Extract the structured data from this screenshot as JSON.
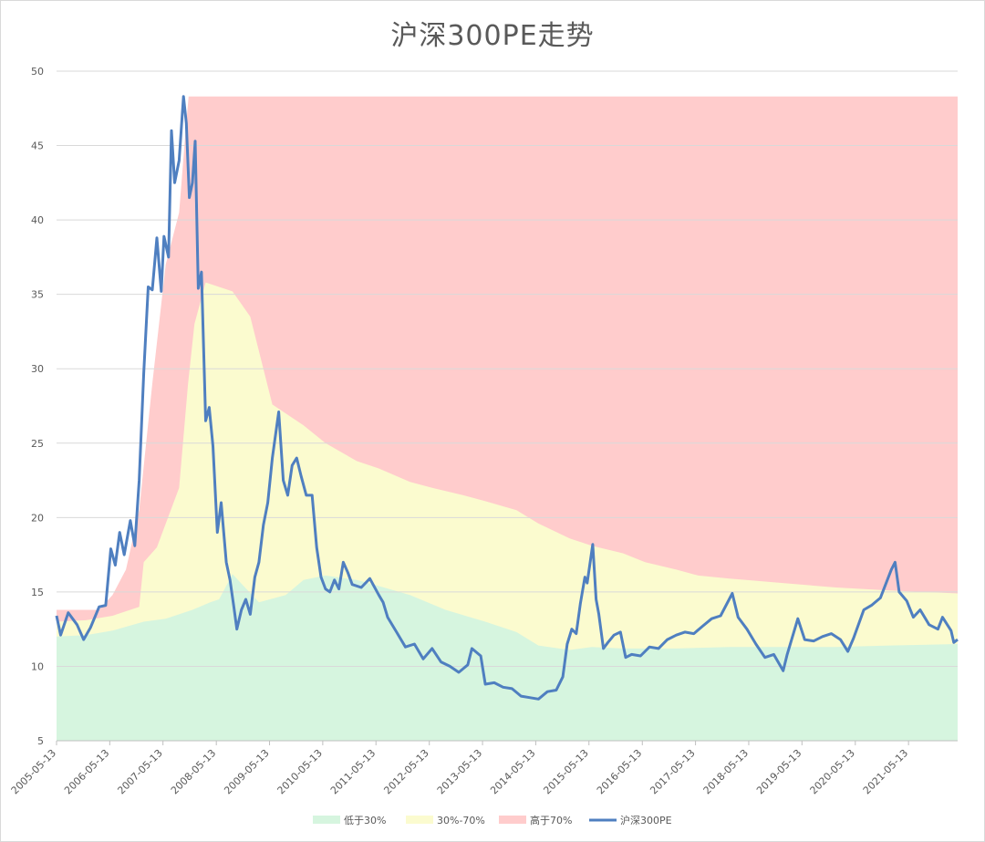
{
  "chart_data": {
    "type": "area",
    "title": "沪深300PE走势",
    "xlabel": "",
    "ylabel": "",
    "ylim": [
      5,
      50
    ],
    "yticks": [
      5,
      10,
      15,
      20,
      25,
      30,
      35,
      40,
      45,
      50
    ],
    "grid": true,
    "legend_position": "bottom",
    "x_tick_labels": [
      "2005-05-13",
      "2006-05-13",
      "2007-05-13",
      "2008-05-13",
      "2009-05-13",
      "2010-05-13",
      "2011-05-13",
      "2012-05-13",
      "2013-05-13",
      "2014-05-13",
      "2015-05-13",
      "2016-05-13",
      "2017-05-13",
      "2018-05-13",
      "2019-05-13",
      "2020-05-13",
      "2021-05-13"
    ],
    "x_start": "2005-05-13",
    "x_end": "2022-04-15",
    "colors": {
      "low": "#d6f5df",
      "mid": "#fbfbcf",
      "high": "#ffcccc",
      "line": "#4f7fc0",
      "grid": "#d9d9d9",
      "axis": "#bfbfbf"
    },
    "series": [
      {
        "name": "低于30%",
        "kind": "area",
        "points": [
          [
            "2005-05-13",
            12.0
          ],
          [
            "2005-12-01",
            12.1
          ],
          [
            "2006-06-01",
            12.4
          ],
          [
            "2007-01-01",
            13.0
          ],
          [
            "2007-06-01",
            13.2
          ],
          [
            "2007-12-01",
            13.8
          ],
          [
            "2008-04-01",
            14.3
          ],
          [
            "2008-06-01",
            14.5
          ],
          [
            "2008-09-01",
            16.2
          ],
          [
            "2009-03-01",
            14.3
          ],
          [
            "2009-09-01",
            14.8
          ],
          [
            "2010-01-01",
            15.8
          ],
          [
            "2010-06-01",
            16.1
          ],
          [
            "2011-01-01",
            15.8
          ],
          [
            "2011-06-01",
            15.4
          ],
          [
            "2012-01-01",
            14.8
          ],
          [
            "2012-09-01",
            13.8
          ],
          [
            "2013-06-01",
            13.0
          ],
          [
            "2014-01-01",
            12.3
          ],
          [
            "2014-06-01",
            11.4
          ],
          [
            "2015-01-01",
            11.1
          ],
          [
            "2015-06-01",
            11.3
          ],
          [
            "2016-01-01",
            11.2
          ],
          [
            "2017-01-01",
            11.2
          ],
          [
            "2018-01-01",
            11.3
          ],
          [
            "2019-01-01",
            11.3
          ],
          [
            "2020-01-01",
            11.3
          ],
          [
            "2021-01-01",
            11.4
          ],
          [
            "2022-04-15",
            11.5
          ]
        ]
      },
      {
        "name": "30%-70%",
        "kind": "area",
        "points": [
          [
            "2005-05-13",
            13.0
          ],
          [
            "2005-12-01",
            13.1
          ],
          [
            "2006-06-01",
            13.4
          ],
          [
            "2006-12-01",
            14.0
          ],
          [
            "2007-01-01",
            17.0
          ],
          [
            "2007-04-01",
            18.0
          ],
          [
            "2007-09-01",
            22.0
          ],
          [
            "2007-11-01",
            29.0
          ],
          [
            "2007-12-15",
            33.0
          ],
          [
            "2008-03-01",
            35.8
          ],
          [
            "2008-06-01",
            35.5
          ],
          [
            "2008-09-01",
            35.2
          ],
          [
            "2009-01-01",
            33.5
          ],
          [
            "2009-06-01",
            27.6
          ],
          [
            "2010-01-01",
            26.2
          ],
          [
            "2010-06-01",
            25.0
          ],
          [
            "2011-01-01",
            23.8
          ],
          [
            "2011-06-01",
            23.3
          ],
          [
            "2012-01-01",
            22.4
          ],
          [
            "2012-06-01",
            22.0
          ],
          [
            "2013-01-01",
            21.5
          ],
          [
            "2013-06-01",
            21.1
          ],
          [
            "2014-01-01",
            20.5
          ],
          [
            "2014-06-01",
            19.6
          ],
          [
            "2015-01-01",
            18.6
          ],
          [
            "2015-06-01",
            18.1
          ],
          [
            "2016-01-01",
            17.6
          ],
          [
            "2016-06-01",
            17.0
          ],
          [
            "2017-01-01",
            16.5
          ],
          [
            "2017-06-01",
            16.1
          ],
          [
            "2018-01-01",
            15.9
          ],
          [
            "2019-01-01",
            15.6
          ],
          [
            "2020-01-01",
            15.3
          ],
          [
            "2021-01-01",
            15.1
          ],
          [
            "2022-04-15",
            14.9
          ]
        ]
      },
      {
        "name": "高于70%",
        "kind": "area",
        "points": [
          [
            "2005-05-13",
            13.8
          ],
          [
            "2006-03-01",
            13.8
          ],
          [
            "2006-06-01",
            14.8
          ],
          [
            "2006-09-01",
            16.5
          ],
          [
            "2006-12-01",
            20.5
          ],
          [
            "2007-03-01",
            29.0
          ],
          [
            "2007-06-01",
            37.0
          ],
          [
            "2007-09-01",
            40.5
          ],
          [
            "2007-10-15",
            46.0
          ],
          [
            "2007-11-05",
            48.3
          ],
          [
            "2022-04-15",
            48.3
          ]
        ]
      },
      {
        "name": "沪深300PE",
        "kind": "line",
        "points": [
          [
            "2005-05-13",
            13.4
          ],
          [
            "2005-06-10",
            12.1
          ],
          [
            "2005-08-01",
            13.6
          ],
          [
            "2005-10-01",
            12.8
          ],
          [
            "2005-11-15",
            11.8
          ],
          [
            "2006-01-01",
            12.6
          ],
          [
            "2006-03-01",
            14.0
          ],
          [
            "2006-04-15",
            14.1
          ],
          [
            "2006-05-20",
            17.9
          ],
          [
            "2006-06-20",
            16.8
          ],
          [
            "2006-07-20",
            19.0
          ],
          [
            "2006-08-20",
            17.5
          ],
          [
            "2006-10-01",
            19.8
          ],
          [
            "2006-11-01",
            18.1
          ],
          [
            "2006-12-01",
            22.5
          ],
          [
            "2007-01-01",
            29.7
          ],
          [
            "2007-02-01",
            35.5
          ],
          [
            "2007-03-01",
            35.3
          ],
          [
            "2007-04-01",
            38.8
          ],
          [
            "2007-05-01",
            35.2
          ],
          [
            "2007-05-20",
            38.9
          ],
          [
            "2007-06-20",
            37.5
          ],
          [
            "2007-07-10",
            46.0
          ],
          [
            "2007-08-01",
            42.5
          ],
          [
            "2007-09-01",
            44.0
          ],
          [
            "2007-10-01",
            48.3
          ],
          [
            "2007-10-20",
            46.5
          ],
          [
            "2007-11-10",
            41.5
          ],
          [
            "2007-12-01",
            42.5
          ],
          [
            "2007-12-20",
            45.3
          ],
          [
            "2008-01-10",
            35.4
          ],
          [
            "2008-02-01",
            36.5
          ],
          [
            "2008-03-01",
            26.5
          ],
          [
            "2008-03-25",
            27.4
          ],
          [
            "2008-04-20",
            24.8
          ],
          [
            "2008-05-20",
            19.0
          ],
          [
            "2008-06-15",
            21.0
          ],
          [
            "2008-07-20",
            17.0
          ],
          [
            "2008-08-15",
            15.8
          ],
          [
            "2008-09-10",
            14.0
          ],
          [
            "2008-10-01",
            12.5
          ],
          [
            "2008-11-01",
            13.8
          ],
          [
            "2008-12-01",
            14.5
          ],
          [
            "2009-01-01",
            13.5
          ],
          [
            "2009-02-01",
            16.0
          ],
          [
            "2009-03-01",
            17.0
          ],
          [
            "2009-04-01",
            19.5
          ],
          [
            "2009-05-01",
            21.0
          ],
          [
            "2009-06-01",
            24.0
          ],
          [
            "2009-07-15",
            27.1
          ],
          [
            "2009-08-15",
            22.5
          ],
          [
            "2009-09-15",
            21.5
          ],
          [
            "2009-10-15",
            23.5
          ],
          [
            "2009-11-15",
            24.0
          ],
          [
            "2009-12-15",
            22.8
          ],
          [
            "2010-01-20",
            21.5
          ],
          [
            "2010-03-01",
            21.5
          ],
          [
            "2010-04-01",
            18.0
          ],
          [
            "2010-05-01",
            16.0
          ],
          [
            "2010-06-01",
            15.2
          ],
          [
            "2010-07-01",
            15.0
          ],
          [
            "2010-08-01",
            15.8
          ],
          [
            "2010-09-01",
            15.2
          ],
          [
            "2010-10-01",
            17.0
          ],
          [
            "2010-11-01",
            16.3
          ],
          [
            "2010-12-01",
            15.5
          ],
          [
            "2011-02-01",
            15.3
          ],
          [
            "2011-04-01",
            15.9
          ],
          [
            "2011-06-01",
            14.8
          ],
          [
            "2011-07-01",
            14.3
          ],
          [
            "2011-08-01",
            13.3
          ],
          [
            "2011-10-01",
            12.3
          ],
          [
            "2011-12-01",
            11.3
          ],
          [
            "2012-02-01",
            11.5
          ],
          [
            "2012-04-01",
            10.5
          ],
          [
            "2012-06-01",
            11.2
          ],
          [
            "2012-08-01",
            10.3
          ],
          [
            "2012-10-01",
            10.0
          ],
          [
            "2012-12-01",
            9.6
          ],
          [
            "2013-02-01",
            10.1
          ],
          [
            "2013-03-01",
            11.2
          ],
          [
            "2013-05-01",
            10.7
          ],
          [
            "2013-06-01",
            8.8
          ],
          [
            "2013-08-01",
            8.9
          ],
          [
            "2013-10-01",
            8.6
          ],
          [
            "2013-12-01",
            8.5
          ],
          [
            "2014-02-01",
            8.0
          ],
          [
            "2014-04-01",
            7.9
          ],
          [
            "2014-06-01",
            7.8
          ],
          [
            "2014-08-01",
            8.3
          ],
          [
            "2014-10-01",
            8.4
          ],
          [
            "2014-11-15",
            9.3
          ],
          [
            "2014-12-15",
            11.5
          ],
          [
            "2015-01-15",
            12.5
          ],
          [
            "2015-02-15",
            12.2
          ],
          [
            "2015-03-15",
            14.2
          ],
          [
            "2015-04-15",
            16.0
          ],
          [
            "2015-05-01",
            15.6
          ],
          [
            "2015-06-08",
            18.2
          ],
          [
            "2015-07-01",
            14.5
          ],
          [
            "2015-07-20",
            13.5
          ],
          [
            "2015-08-20",
            11.2
          ],
          [
            "2015-09-20",
            11.6
          ],
          [
            "2015-11-01",
            12.1
          ],
          [
            "2015-12-15",
            12.3
          ],
          [
            "2016-01-20",
            10.6
          ],
          [
            "2016-03-01",
            10.8
          ],
          [
            "2016-05-01",
            10.7
          ],
          [
            "2016-07-01",
            11.3
          ],
          [
            "2016-09-01",
            11.2
          ],
          [
            "2016-11-01",
            11.8
          ],
          [
            "2017-01-01",
            12.1
          ],
          [
            "2017-03-01",
            12.3
          ],
          [
            "2017-05-01",
            12.2
          ],
          [
            "2017-07-01",
            12.7
          ],
          [
            "2017-09-01",
            13.2
          ],
          [
            "2017-11-01",
            13.4
          ],
          [
            "2018-01-20",
            14.9
          ],
          [
            "2018-03-01",
            13.3
          ],
          [
            "2018-05-01",
            12.5
          ],
          [
            "2018-07-01",
            11.5
          ],
          [
            "2018-09-01",
            10.6
          ],
          [
            "2018-11-01",
            10.8
          ],
          [
            "2019-01-04",
            9.7
          ],
          [
            "2019-02-01",
            10.8
          ],
          [
            "2019-04-15",
            13.2
          ],
          [
            "2019-06-01",
            11.8
          ],
          [
            "2019-08-01",
            11.7
          ],
          [
            "2019-10-01",
            12.0
          ],
          [
            "2019-12-01",
            12.2
          ],
          [
            "2020-02-01",
            11.8
          ],
          [
            "2020-03-23",
            11.0
          ],
          [
            "2020-05-01",
            11.9
          ],
          [
            "2020-07-10",
            13.8
          ],
          [
            "2020-09-01",
            14.1
          ],
          [
            "2020-11-01",
            14.6
          ],
          [
            "2021-01-15",
            16.5
          ],
          [
            "2021-02-10",
            17.0
          ],
          [
            "2021-03-10",
            15.0
          ],
          [
            "2021-05-01",
            14.4
          ],
          [
            "2021-06-15",
            13.3
          ],
          [
            "2021-08-01",
            13.8
          ],
          [
            "2021-10-01",
            12.8
          ],
          [
            "2021-12-01",
            12.5
          ],
          [
            "2022-01-01",
            13.3
          ],
          [
            "2022-03-01",
            12.4
          ],
          [
            "2022-03-20",
            11.6
          ],
          [
            "2022-04-15",
            11.8
          ]
        ]
      }
    ]
  }
}
